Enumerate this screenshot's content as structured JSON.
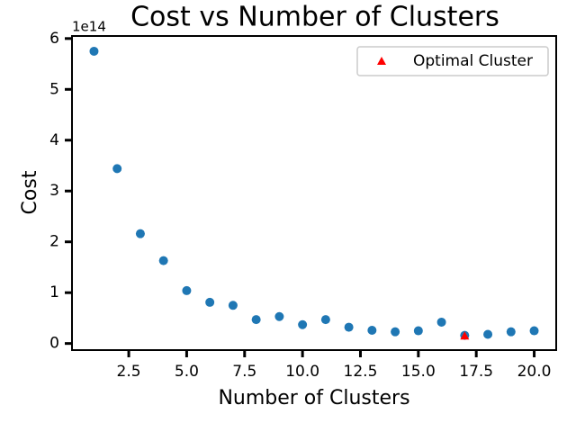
{
  "chart_data": {
    "type": "scatter",
    "title": "Cost vs Number of Clusters",
    "xlabel": "Number of Clusters",
    "ylabel": "Cost",
    "y_offset_label": "1e14",
    "series": [
      {
        "color": "#1f77b4",
        "marker": "circle",
        "x": [
          1,
          2,
          3,
          4,
          5,
          6,
          7,
          8,
          9,
          10,
          11,
          12,
          13,
          14,
          15,
          16,
          17,
          18,
          19,
          20
        ],
        "values": [
          5.75,
          3.44,
          2.16,
          1.63,
          1.04,
          0.81,
          0.75,
          0.47,
          0.53,
          0.37,
          0.47,
          0.32,
          0.26,
          0.23,
          0.25,
          0.42,
          0.16,
          0.18,
          0.23,
          0.25
        ]
      },
      {
        "name": "Optimal Cluster",
        "color": "#ff0000",
        "marker": "triangle",
        "x": [
          17
        ],
        "values": [
          0.15
        ]
      }
    ],
    "xlim": [
      0.05,
      20.95
    ],
    "ylim": [
      -0.13,
      6.05
    ],
    "xticks": [
      {
        "value": 2.5,
        "label": "2.5"
      },
      {
        "value": 5,
        "label": "5.0"
      },
      {
        "value": 7.5,
        "label": "7.5"
      },
      {
        "value": 10,
        "label": "10.0"
      },
      {
        "value": 12.5,
        "label": "12.5"
      },
      {
        "value": 15,
        "label": "15.0"
      },
      {
        "value": 17.5,
        "label": "17.5"
      },
      {
        "value": 20,
        "label": "20.0"
      }
    ],
    "yticks": [
      0,
      1,
      2,
      3,
      4,
      5,
      6
    ],
    "legend": "upper right",
    "grid": false
  }
}
